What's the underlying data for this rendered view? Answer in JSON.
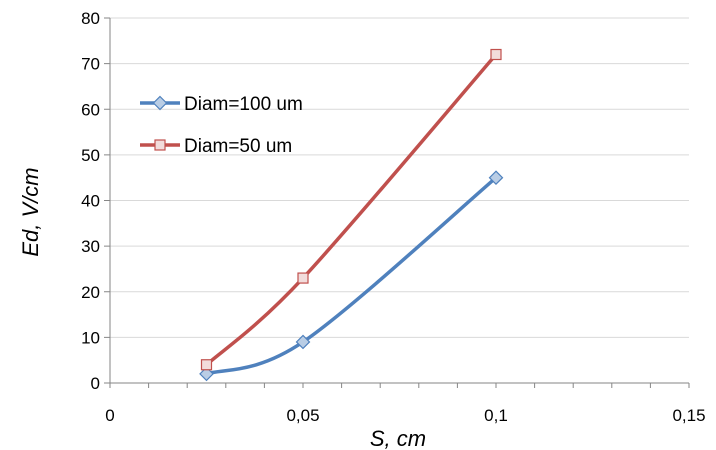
{
  "chart_data": {
    "type": "scatter",
    "xlabel": "S, cm",
    "ylabel": "Ed, V/cm",
    "xlim": [
      0,
      0.15
    ],
    "ylim": [
      0,
      80
    ],
    "x_ticks": [
      0,
      0.05,
      0.1,
      0.15
    ],
    "x_tick_labels": [
      "0",
      "0,05",
      "0,1",
      "0,15"
    ],
    "y_ticks": [
      0,
      10,
      20,
      30,
      40,
      50,
      60,
      70,
      80
    ],
    "y_tick_labels": [
      "0",
      "10",
      "20",
      "30",
      "40",
      "50",
      "60",
      "70",
      "80"
    ],
    "grid": "horizontal",
    "legend_position": "upper-left",
    "line_style": "smoothed",
    "series": [
      {
        "name": "Diam=100 um",
        "marker": "diamond",
        "color": "#4f81bd",
        "marker_fill": "#b9cde5",
        "x": [
          0.025,
          0.05,
          0.1
        ],
        "y": [
          2,
          9,
          45
        ]
      },
      {
        "name": "Diam=50 um",
        "marker": "square",
        "color": "#c0504d",
        "marker_fill": "#f2dcdb",
        "x": [
          0.025,
          0.05,
          0.1
        ],
        "y": [
          4,
          23,
          72
        ]
      }
    ]
  }
}
